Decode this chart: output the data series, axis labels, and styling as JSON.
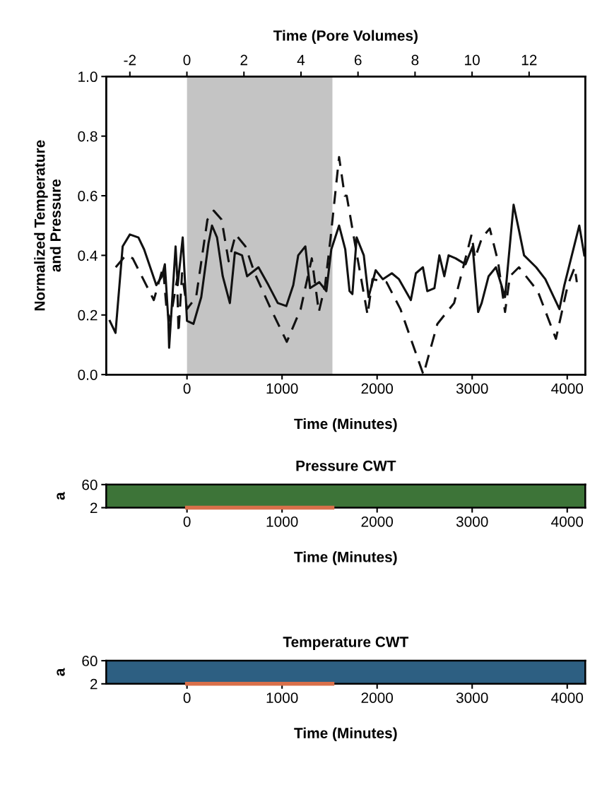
{
  "chart_data": [
    {
      "type": "line",
      "xlabel": "Time (Minutes)",
      "ylabel": "Normalized Temperature\nand Pressure",
      "x2label": "Time (Pore Volumes)",
      "xlim": [
        -850,
        4190
      ],
      "xticks": [
        0,
        1000,
        2000,
        3000,
        4000
      ],
      "ylim": [
        0,
        1
      ],
      "yticks": [
        {
          "value": 0,
          "label": "0.0"
        },
        0.2,
        0.4,
        0.6,
        0.8,
        {
          "value": 1,
          "label": "1.0"
        }
      ],
      "x2lim": [
        -2.83,
        13.97
      ],
      "x2ticks": [
        -2,
        0,
        2,
        4,
        6,
        8,
        10,
        12
      ],
      "grid": false,
      "legend": false,
      "bands": [
        {
          "axis": "x",
          "from": 0,
          "to": 1530,
          "color": "#c4c4c4"
        }
      ],
      "series": [
        {
          "color": "#111111",
          "line_style": "solid",
          "x": [
            -812,
            -752,
            -677,
            -601,
            -511,
            -451,
            -323,
            -263,
            -233,
            -196,
            -188,
            -120,
            -98,
            -45,
            0,
            68,
            150,
            226,
            263,
            316,
            376,
            451,
            504,
            579,
            632,
            752,
            857,
            955,
            1045,
            1118,
            1170,
            1245,
            1295,
            1392,
            1466,
            1518,
            1600,
            1665,
            1710,
            1740,
            1785,
            1860,
            1910,
            1985,
            2060,
            2155,
            2230,
            2355,
            2408,
            2482,
            2528,
            2603,
            2655,
            2707,
            2752,
            2826,
            2930,
            3005,
            3063,
            3100,
            3173,
            3250,
            3346,
            3436,
            3495,
            3546,
            3673,
            3770,
            3918,
            3970,
            4127,
            4180
          ],
          "values": [
            0.18,
            0.14,
            0.43,
            0.47,
            0.46,
            0.42,
            0.3,
            0.33,
            0.37,
            0.18,
            0.09,
            0.43,
            0.3,
            0.46,
            0.18,
            0.17,
            0.26,
            0.44,
            0.5,
            0.46,
            0.33,
            0.24,
            0.41,
            0.4,
            0.33,
            0.36,
            0.3,
            0.24,
            0.23,
            0.3,
            0.4,
            0.43,
            0.29,
            0.31,
            0.28,
            0.42,
            0.5,
            0.42,
            0.28,
            0.27,
            0.46,
            0.4,
            0.26,
            0.35,
            0.32,
            0.34,
            0.32,
            0.25,
            0.34,
            0.36,
            0.28,
            0.29,
            0.4,
            0.33,
            0.4,
            0.39,
            0.37,
            0.43,
            0.21,
            0.24,
            0.33,
            0.36,
            0.26,
            0.57,
            0.48,
            0.4,
            0.36,
            0.32,
            0.22,
            0.3,
            0.5,
            0.4
          ]
        },
        {
          "color": "#111111",
          "line_style": "dashed",
          "x": [
            -750,
            -645,
            -571,
            -349,
            -252,
            -215,
            -178,
            -104,
            -89,
            -52,
            0,
            96,
            215,
            281,
            364,
            438,
            512,
            615,
            712,
            883,
            1050,
            1196,
            1313,
            1387,
            1453,
            1511,
            1600,
            1659,
            1680,
            1783,
            1900,
            1951,
            2099,
            2245,
            2487,
            2634,
            2810,
            2994,
            3030,
            3104,
            3185,
            3272,
            3346,
            3397,
            3492,
            3690,
            3881,
            4006,
            4079,
            4101
          ],
          "values": [
            0.36,
            0.4,
            0.39,
            0.25,
            0.36,
            0.22,
            0.18,
            0.32,
            0.14,
            0.34,
            0.22,
            0.26,
            0.52,
            0.55,
            0.52,
            0.38,
            0.47,
            0.43,
            0.34,
            0.22,
            0.11,
            0.22,
            0.39,
            0.21,
            0.3,
            0.46,
            0.73,
            0.6,
            0.6,
            0.41,
            0.2,
            0.32,
            0.31,
            0.22,
            0.0,
            0.17,
            0.24,
            0.47,
            0.39,
            0.46,
            0.49,
            0.38,
            0.21,
            0.33,
            0.36,
            0.28,
            0.12,
            0.3,
            0.36,
            0.31
          ]
        }
      ]
    },
    {
      "type": "line",
      "title": "Pressure CWT",
      "xlabel": "Time (Minutes)",
      "ylabel": "a",
      "xlim": [
        -850,
        4190
      ],
      "xticks": [
        0,
        1000,
        2000,
        3000,
        4000
      ],
      "ylim": [
        2,
        60
      ],
      "yticks": [
        2,
        60
      ],
      "series": [
        {
          "color": "#d9704a",
          "line_style": "solid",
          "x": [
            0,
            1530
          ],
          "values": [
            2,
            2
          ]
        }
      ]
    },
    {
      "type": "line",
      "title": "Temperature CWT",
      "xlabel": "Time (Minutes)",
      "ylabel": "a",
      "xlim": [
        -850,
        4190
      ],
      "xticks": [
        0,
        1000,
        2000,
        3000,
        4000
      ],
      "ylim": [
        2,
        60
      ],
      "yticks": [
        2,
        60
      ],
      "series": [
        {
          "color": "#d9704a",
          "line_style": "solid",
          "x": [
            0,
            1530
          ],
          "values": [
            2,
            2
          ]
        }
      ]
    }
  ]
}
